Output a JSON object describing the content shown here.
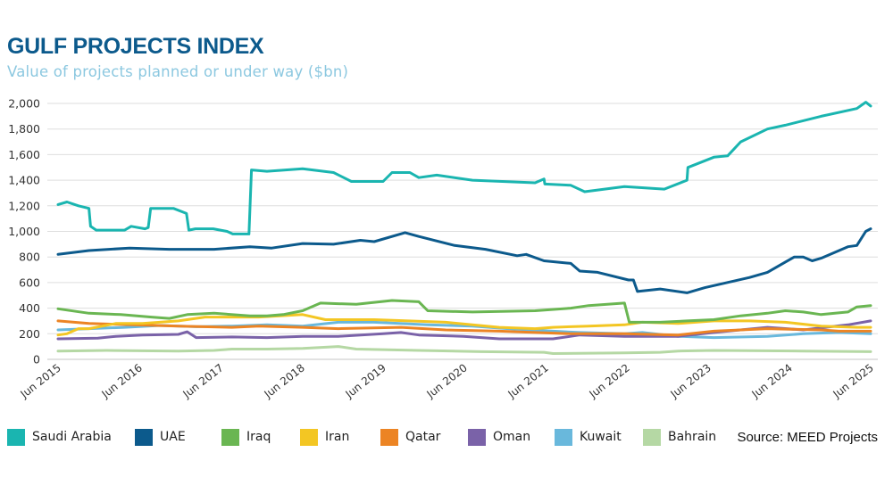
{
  "header": {
    "title": "GULF PROJECTS INDEX",
    "subtitle": "Value of projects planned or under way ($bn)"
  },
  "source": "Source: MEED Projects",
  "chart_data": {
    "type": "line",
    "title": "GULF PROJECTS INDEX",
    "subtitle": "Value of projects planned or under way ($bn)",
    "xlabel": "",
    "ylabel": "",
    "x_unit": "decimal year",
    "xlim": [
      2015.42,
      2025.42
    ],
    "ylim": [
      0,
      2000
    ],
    "yticks": [
      0,
      200,
      400,
      600,
      800,
      1000,
      1200,
      1400,
      1600,
      1800,
      2000
    ],
    "ytick_labels": [
      "0",
      "200",
      "400",
      "600",
      "800",
      "1,000",
      "1,200",
      "1,400",
      "1,600",
      "1,800",
      "2,000"
    ],
    "xticks": [
      2015.42,
      2016.42,
      2017.42,
      2018.42,
      2019.42,
      2020.42,
      2021.42,
      2022.42,
      2023.42,
      2024.42,
      2025.42
    ],
    "xtick_labels": [
      "Jun 2015",
      "Jun 2016",
      "Jun 2017",
      "Jun 2018",
      "Jun 2019",
      "Jun 2020",
      "Jun 2021",
      "Jun 2022",
      "Jun 2023",
      "Jun 2024",
      "Jun 2025"
    ],
    "grid": "horizontal",
    "legend_position": "bottom",
    "series": [
      {
        "name": "Saudi Arabia",
        "color": "#1ab5b0",
        "points": [
          [
            2015.42,
            1210
          ],
          [
            2015.53,
            1230
          ],
          [
            2015.67,
            1200
          ],
          [
            2015.8,
            1180
          ],
          [
            2015.82,
            1040
          ],
          [
            2015.89,
            1010
          ],
          [
            2016.24,
            1010
          ],
          [
            2016.32,
            1040
          ],
          [
            2016.49,
            1020
          ],
          [
            2016.53,
            1030
          ],
          [
            2016.56,
            1180
          ],
          [
            2016.84,
            1180
          ],
          [
            2017.0,
            1140
          ],
          [
            2017.03,
            1010
          ],
          [
            2017.11,
            1020
          ],
          [
            2017.33,
            1020
          ],
          [
            2017.5,
            1000
          ],
          [
            2017.57,
            980
          ],
          [
            2017.77,
            980
          ],
          [
            2017.8,
            1480
          ],
          [
            2017.99,
            1470
          ],
          [
            2018.43,
            1490
          ],
          [
            2018.81,
            1460
          ],
          [
            2019.03,
            1390
          ],
          [
            2019.42,
            1390
          ],
          [
            2019.53,
            1460
          ],
          [
            2019.75,
            1460
          ],
          [
            2019.86,
            1420
          ],
          [
            2020.08,
            1440
          ],
          [
            2020.52,
            1400
          ],
          [
            2021.29,
            1380
          ],
          [
            2021.4,
            1410
          ],
          [
            2021.41,
            1370
          ],
          [
            2021.73,
            1360
          ],
          [
            2021.9,
            1310
          ],
          [
            2022.39,
            1350
          ],
          [
            2022.88,
            1330
          ],
          [
            2023.16,
            1400
          ],
          [
            2023.17,
            1500
          ],
          [
            2023.49,
            1580
          ],
          [
            2023.66,
            1590
          ],
          [
            2023.82,
            1700
          ],
          [
            2024.15,
            1800
          ],
          [
            2024.37,
            1830
          ],
          [
            2024.81,
            1900
          ],
          [
            2025.25,
            1960
          ],
          [
            2025.36,
            2010
          ],
          [
            2025.42,
            1980
          ]
        ]
      },
      {
        "name": "UAE",
        "color": "#0c5a8c",
        "points": [
          [
            2015.42,
            820
          ],
          [
            2015.8,
            850
          ],
          [
            2016.3,
            870
          ],
          [
            2016.79,
            860
          ],
          [
            2017.34,
            860
          ],
          [
            2017.78,
            880
          ],
          [
            2018.05,
            870
          ],
          [
            2018.43,
            905
          ],
          [
            2018.81,
            900
          ],
          [
            2019.14,
            930
          ],
          [
            2019.31,
            920
          ],
          [
            2019.69,
            990
          ],
          [
            2019.86,
            960
          ],
          [
            2020.3,
            890
          ],
          [
            2020.68,
            860
          ],
          [
            2021.07,
            810
          ],
          [
            2021.18,
            820
          ],
          [
            2021.4,
            770
          ],
          [
            2021.73,
            750
          ],
          [
            2021.84,
            690
          ],
          [
            2022.06,
            680
          ],
          [
            2022.44,
            620
          ],
          [
            2022.5,
            620
          ],
          [
            2022.55,
            530
          ],
          [
            2022.83,
            550
          ],
          [
            2023.16,
            520
          ],
          [
            2023.38,
            560
          ],
          [
            2023.93,
            640
          ],
          [
            2024.15,
            680
          ],
          [
            2024.37,
            760
          ],
          [
            2024.48,
            800
          ],
          [
            2024.59,
            800
          ],
          [
            2024.7,
            770
          ],
          [
            2024.81,
            790
          ],
          [
            2025.14,
            880
          ],
          [
            2025.25,
            890
          ],
          [
            2025.36,
            1000
          ],
          [
            2025.42,
            1020
          ]
        ]
      },
      {
        "name": "Iraq",
        "color": "#6ab652",
        "points": [
          [
            2015.42,
            395
          ],
          [
            2015.8,
            360
          ],
          [
            2016.19,
            350
          ],
          [
            2016.57,
            330
          ],
          [
            2016.79,
            320
          ],
          [
            2017.01,
            350
          ],
          [
            2017.34,
            360
          ],
          [
            2017.78,
            340
          ],
          [
            2017.99,
            340
          ],
          [
            2018.19,
            350
          ],
          [
            2018.43,
            380
          ],
          [
            2018.65,
            440
          ],
          [
            2019.09,
            430
          ],
          [
            2019.53,
            460
          ],
          [
            2019.86,
            450
          ],
          [
            2019.97,
            380
          ],
          [
            2020.52,
            370
          ],
          [
            2021.29,
            380
          ],
          [
            2021.73,
            400
          ],
          [
            2021.95,
            420
          ],
          [
            2022.39,
            440
          ],
          [
            2022.45,
            290
          ],
          [
            2022.83,
            290
          ],
          [
            2023.16,
            300
          ],
          [
            2023.49,
            310
          ],
          [
            2023.82,
            340
          ],
          [
            2024.15,
            360
          ],
          [
            2024.37,
            380
          ],
          [
            2024.59,
            370
          ],
          [
            2024.81,
            350
          ],
          [
            2025.14,
            370
          ],
          [
            2025.25,
            410
          ],
          [
            2025.42,
            420
          ]
        ]
      },
      {
        "name": "Iran",
        "color": "#f3c623",
        "points": [
          [
            2015.42,
            190
          ],
          [
            2015.53,
            200
          ],
          [
            2015.67,
            240
          ],
          [
            2015.8,
            240
          ],
          [
            2016.13,
            280
          ],
          [
            2016.46,
            280
          ],
          [
            2016.9,
            300
          ],
          [
            2017.23,
            330
          ],
          [
            2017.56,
            330
          ],
          [
            2017.89,
            330
          ],
          [
            2018.43,
            350
          ],
          [
            2018.71,
            310
          ],
          [
            2019.31,
            310
          ],
          [
            2020.19,
            290
          ],
          [
            2020.85,
            250
          ],
          [
            2021.29,
            240
          ],
          [
            2021.51,
            250
          ],
          [
            2021.95,
            260
          ],
          [
            2022.39,
            270
          ],
          [
            2022.61,
            290
          ],
          [
            2023.05,
            280
          ],
          [
            2023.49,
            300
          ],
          [
            2023.93,
            300
          ],
          [
            2024.37,
            290
          ],
          [
            2024.81,
            260
          ],
          [
            2025.25,
            250
          ],
          [
            2025.42,
            250
          ]
        ]
      },
      {
        "name": "Qatar",
        "color": "#ec8424",
        "points": [
          [
            2015.42,
            300
          ],
          [
            2015.8,
            280
          ],
          [
            2016.35,
            270
          ],
          [
            2016.9,
            260
          ],
          [
            2017.56,
            250
          ],
          [
            2017.89,
            260
          ],
          [
            2018.43,
            250
          ],
          [
            2018.87,
            240
          ],
          [
            2019.64,
            250
          ],
          [
            2020.19,
            230
          ],
          [
            2020.85,
            220
          ],
          [
            2021.29,
            210
          ],
          [
            2021.73,
            200
          ],
          [
            2022.39,
            200
          ],
          [
            2023.05,
            190
          ],
          [
            2023.49,
            220
          ],
          [
            2024.15,
            240
          ],
          [
            2024.81,
            230
          ],
          [
            2025.03,
            220
          ],
          [
            2025.42,
            220
          ]
        ]
      },
      {
        "name": "Oman",
        "color": "#7a62a8",
        "points": [
          [
            2015.42,
            160
          ],
          [
            2015.91,
            165
          ],
          [
            2016.13,
            180
          ],
          [
            2016.46,
            190
          ],
          [
            2016.9,
            195
          ],
          [
            2017.01,
            215
          ],
          [
            2017.12,
            170
          ],
          [
            2017.56,
            175
          ],
          [
            2017.99,
            170
          ],
          [
            2018.43,
            180
          ],
          [
            2018.87,
            180
          ],
          [
            2019.42,
            200
          ],
          [
            2019.64,
            210
          ],
          [
            2019.86,
            190
          ],
          [
            2020.41,
            180
          ],
          [
            2020.85,
            160
          ],
          [
            2021.51,
            160
          ],
          [
            2021.84,
            190
          ],
          [
            2022.39,
            180
          ],
          [
            2023.05,
            180
          ],
          [
            2023.49,
            210
          ],
          [
            2024.15,
            250
          ],
          [
            2024.59,
            230
          ],
          [
            2025.14,
            270
          ],
          [
            2025.42,
            300
          ]
        ]
      },
      {
        "name": "Kuwait",
        "color": "#69b8dc",
        "points": [
          [
            2015.42,
            230
          ],
          [
            2015.8,
            240
          ],
          [
            2016.24,
            250
          ],
          [
            2016.68,
            265
          ],
          [
            2017.12,
            255
          ],
          [
            2017.56,
            260
          ],
          [
            2017.99,
            270
          ],
          [
            2018.43,
            260
          ],
          [
            2018.87,
            290
          ],
          [
            2019.31,
            290
          ],
          [
            2019.97,
            270
          ],
          [
            2020.52,
            260
          ],
          [
            2020.96,
            240
          ],
          [
            2021.51,
            220
          ],
          [
            2021.84,
            210
          ],
          [
            2022.39,
            200
          ],
          [
            2022.61,
            210
          ],
          [
            2023.05,
            180
          ],
          [
            2023.49,
            170
          ],
          [
            2024.15,
            180
          ],
          [
            2024.59,
            200
          ],
          [
            2025.03,
            210
          ],
          [
            2025.42,
            200
          ]
        ]
      },
      {
        "name": "Bahrain",
        "color": "#b5d8a4",
        "points": [
          [
            2015.42,
            65
          ],
          [
            2016.02,
            70
          ],
          [
            2016.9,
            65
          ],
          [
            2017.34,
            70
          ],
          [
            2017.56,
            80
          ],
          [
            2017.99,
            80
          ],
          [
            2018.43,
            85
          ],
          [
            2018.87,
            100
          ],
          [
            2019.09,
            80
          ],
          [
            2019.86,
            70
          ],
          [
            2020.63,
            60
          ],
          [
            2021.4,
            55
          ],
          [
            2021.51,
            45
          ],
          [
            2022.39,
            50
          ],
          [
            2022.83,
            55
          ],
          [
            2023.05,
            65
          ],
          [
            2023.49,
            70
          ],
          [
            2024.59,
            65
          ],
          [
            2025.42,
            60
          ]
        ]
      }
    ]
  }
}
